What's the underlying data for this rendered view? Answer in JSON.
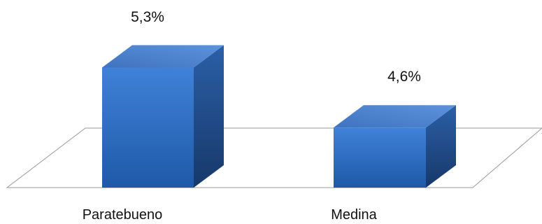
{
  "chart_data": {
    "type": "bar",
    "style": "3d-column",
    "categories": [
      "Paratebueno",
      "Medina"
    ],
    "values": [
      5.3,
      4.6
    ],
    "data_labels": [
      "5,3%",
      "4,6%"
    ],
    "ylim": [
      3.9,
      5.5
    ],
    "grid": false,
    "legend": "none",
    "colors": {
      "front_top": "#3f82d8",
      "front_bottom": "#1f59a8",
      "side_top": "#2b5fa7",
      "side_bottom": "#17386a",
      "top_light": "#5c93dd",
      "top_dark": "#3f73bf",
      "floor_stroke": "#9a9a9a"
    }
  }
}
